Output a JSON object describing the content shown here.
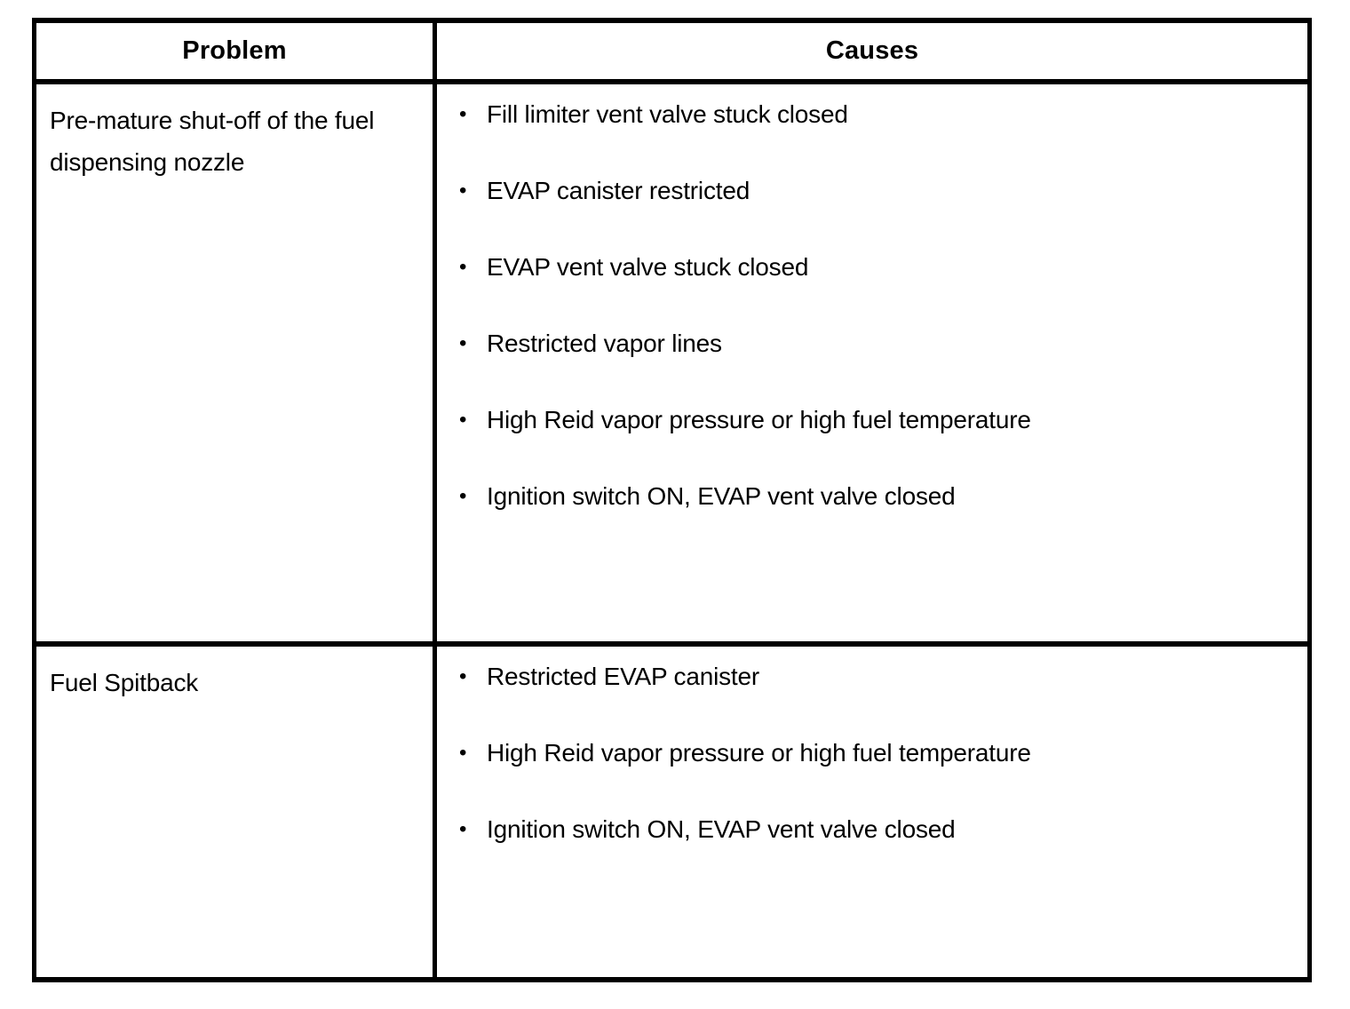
{
  "table": {
    "bullet": "•",
    "headers": {
      "problem": "Problem",
      "causes": "Causes"
    },
    "rows": [
      {
        "problem": "Pre-mature shut-off of the fuel dispensing nozzle",
        "causes": [
          "Fill limiter vent valve stuck closed",
          "EVAP canister restricted",
          "EVAP vent valve stuck closed",
          "Restricted vapor lines",
          "High Reid vapor pressure or high fuel temperature",
          "Ignition switch ON, EVAP vent valve closed"
        ]
      },
      {
        "problem": "Fuel Spitback",
        "causes": [
          "Restricted EVAP canister",
          "High Reid vapor pressure or high fuel temperature",
          "Ignition switch ON, EVAP vent valve closed"
        ]
      }
    ],
    "colors": {
      "border": "#000000",
      "text": "#000000",
      "background": "#ffffff"
    }
  }
}
